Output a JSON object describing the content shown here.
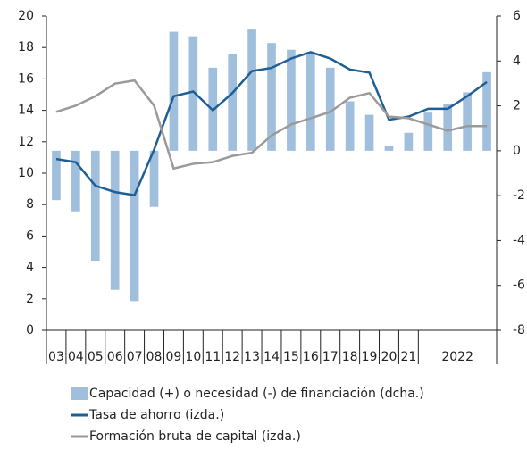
{
  "chart_data": {
    "type": "bar-line",
    "categories": [
      "03",
      "04",
      "05",
      "06",
      "07",
      "08",
      "09",
      "10",
      "11",
      "12",
      "13",
      "14",
      "15",
      "16",
      "17",
      "18",
      "19",
      "20",
      "21",
      null,
      "2022",
      null,
      null
    ],
    "series": [
      {
        "name": "Capacidad (+) o necesidad (-) de financiación (dcha.)",
        "type": "bar",
        "axis": "y2",
        "color": "#9fbfdc",
        "values": [
          -2.2,
          -2.7,
          -4.9,
          -6.2,
          -6.7,
          -2.5,
          5.3,
          5.1,
          3.7,
          4.3,
          5.4,
          4.8,
          4.5,
          4.4,
          3.7,
          2.2,
          1.6,
          0.2,
          0.8,
          1.7,
          2.1,
          2.6,
          3.5
        ]
      },
      {
        "name": "Tasa de ahorro (izda.)",
        "type": "line",
        "color": "#1f5f96",
        "values": [
          10.9,
          10.7,
          9.2,
          8.8,
          8.6,
          11.5,
          14.9,
          15.2,
          14.0,
          15.1,
          16.5,
          16.7,
          17.3,
          17.7,
          17.3,
          16.6,
          16.4,
          13.4,
          13.6,
          14.1,
          14.1,
          14.9,
          15.8
        ]
      },
      {
        "name": "Formación bruta de capital (izda.)",
        "type": "line",
        "color": "#9a9a9a",
        "values": [
          13.9,
          14.3,
          14.9,
          15.7,
          15.9,
          14.3,
          10.3,
          10.6,
          10.7,
          11.1,
          11.3,
          12.4,
          13.1,
          13.5,
          13.9,
          14.8,
          15.1,
          13.6,
          13.5,
          13.1,
          12.7,
          13.0,
          13.0
        ]
      }
    ],
    "ylim": [
      0,
      20
    ],
    "yticks": [
      0,
      2,
      4,
      6,
      8,
      10,
      12,
      14,
      16,
      18,
      20
    ],
    "y2lim": [
      -8,
      6
    ],
    "y2ticks": [
      -8,
      -6,
      -4,
      -2,
      0,
      2,
      4,
      6
    ],
    "legend": "bottom"
  }
}
